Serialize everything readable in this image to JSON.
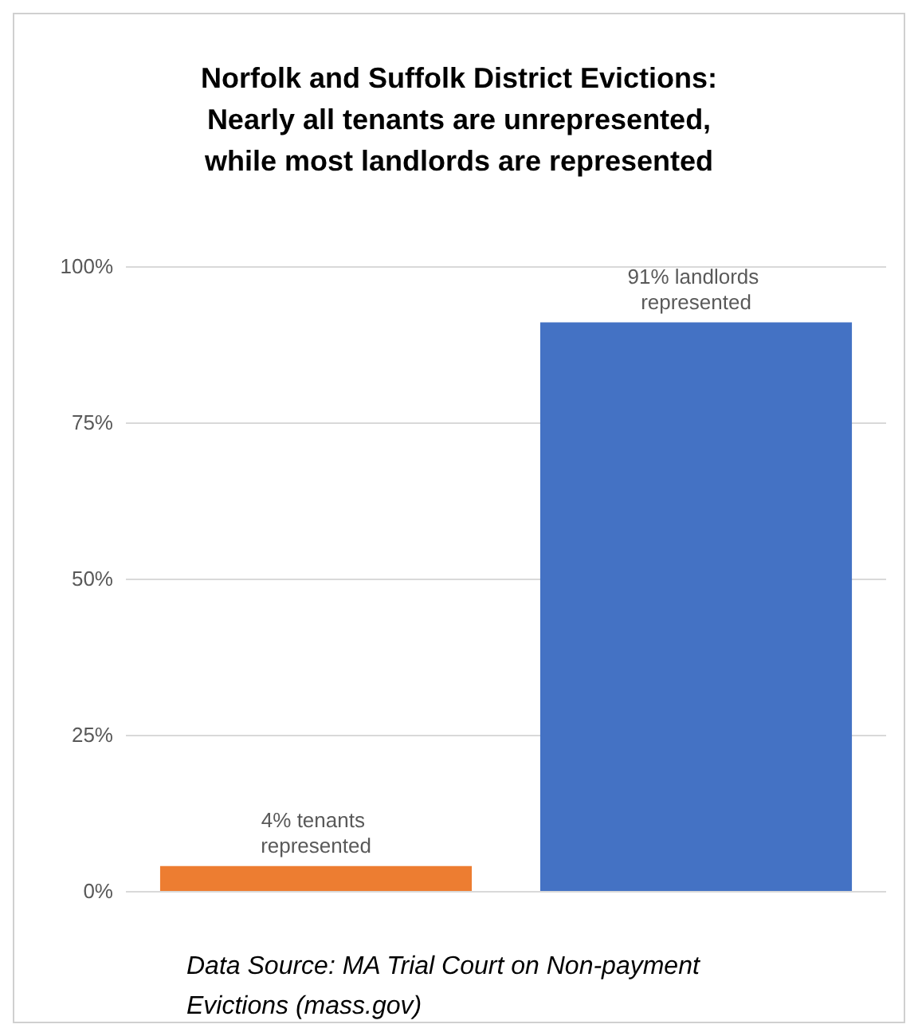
{
  "chart_data": {
    "type": "bar",
    "title": "Norfolk and Suffolk District Evictions:\nNearly all tenants are unrepresented,\nwhile most landlords are represented",
    "categories": [
      null,
      null
    ],
    "values": [
      4,
      91
    ],
    "colors": [
      "#ed7d31",
      "#4472c4"
    ],
    "value_labels": [
      "4% tenants represented",
      "91% landlords represented"
    ],
    "ylim": [
      0,
      100
    ],
    "yticks": [
      {
        "value": 0,
        "label": "0%"
      },
      {
        "value": 25,
        "label": "25%"
      },
      {
        "value": 50,
        "label": "50%"
      },
      {
        "value": 75,
        "label": "75%"
      },
      {
        "value": 100,
        "label": "100%"
      }
    ],
    "grid": "y",
    "tick_labels": "y",
    "annotations": [
      "Data Source: MA Trial Court on Non-payment Evictions (mass.gov)"
    ]
  }
}
